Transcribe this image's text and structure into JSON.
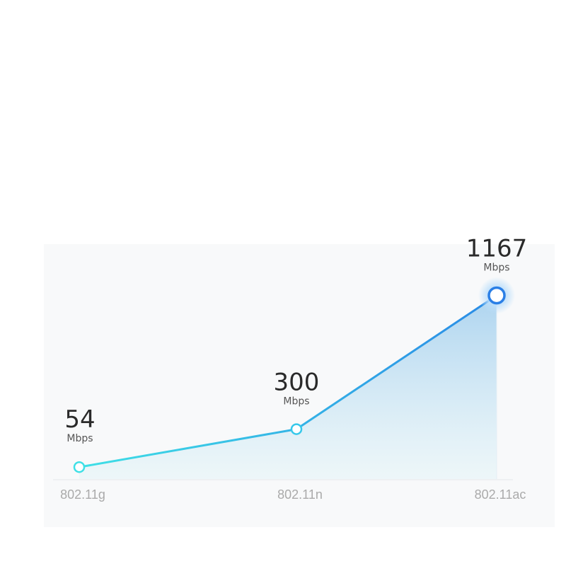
{
  "chart_data": {
    "type": "area",
    "categories": [
      "802.11g",
      "802.11n",
      "802.11ac"
    ],
    "values": [
      54,
      300,
      1167
    ],
    "data_labels": [
      "54",
      "300",
      "1167"
    ],
    "unit_label": "Mbps",
    "title": "",
    "xlabel": "",
    "ylabel": "",
    "ylim": [
      0,
      1200
    ],
    "grid": false,
    "colors": {
      "line_start": "#3fe0e6",
      "line_end": "#2a8ae6",
      "fill": "#bcdcf2",
      "text": "#2a2a2a",
      "tick": "#aaaaaa"
    }
  }
}
